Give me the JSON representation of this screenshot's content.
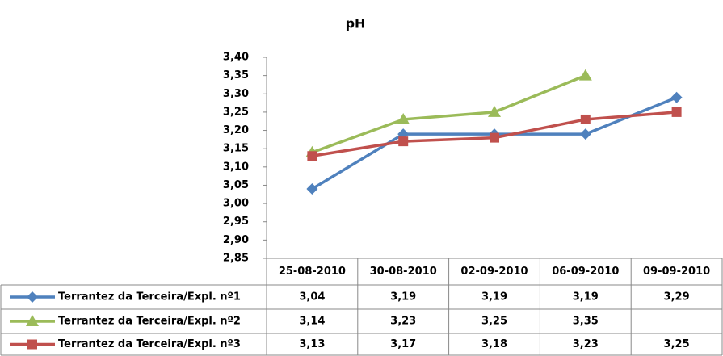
{
  "chart_data": {
    "type": "line",
    "title": "pH",
    "categories": [
      "25-08-2010",
      "30-08-2010",
      "02-09-2010",
      "06-09-2010",
      "09-09-2010"
    ],
    "series": [
      {
        "name": "Terrantez da Terceira/Expl. nº1",
        "color": "#4f81bd",
        "marker": "diamond",
        "values": [
          3.04,
          3.19,
          3.19,
          3.19,
          3.29
        ],
        "value_labels": [
          "3,04",
          "3,19",
          "3,19",
          "3,19",
          "3,29"
        ]
      },
      {
        "name": "Terrantez da Terceira/Expl. nº2",
        "color": "#9bbb59",
        "marker": "triangle",
        "values": [
          3.14,
          3.23,
          3.25,
          3.35,
          null
        ],
        "value_labels": [
          "3,14",
          "3,23",
          "3,25",
          "3,35",
          null
        ]
      },
      {
        "name": "Terrantez da Terceira/Expl. nº3",
        "color": "#c0504d",
        "marker": "square",
        "values": [
          3.13,
          3.17,
          3.18,
          3.23,
          3.25
        ],
        "value_labels": [
          "3,13",
          "3,17",
          "3,18",
          "3,23",
          "3,25"
        ]
      }
    ],
    "ylim": [
      2.85,
      3.4
    ],
    "yticks": [
      {
        "value": 2.85,
        "label": "2,85"
      },
      {
        "value": 2.9,
        "label": "2,90"
      },
      {
        "value": 2.95,
        "label": "2,95"
      },
      {
        "value": 3.0,
        "label": "3,00"
      },
      {
        "value": 3.05,
        "label": "3,05"
      },
      {
        "value": 3.1,
        "label": "3,10"
      },
      {
        "value": 3.15,
        "label": "3,15"
      },
      {
        "value": 3.2,
        "label": "3,20"
      },
      {
        "value": 3.25,
        "label": "3,25"
      },
      {
        "value": 3.3,
        "label": "3,30"
      },
      {
        "value": 3.35,
        "label": "3,35"
      },
      {
        "value": 3.4,
        "label": "3,40"
      }
    ],
    "grid": false,
    "data_table": true
  }
}
